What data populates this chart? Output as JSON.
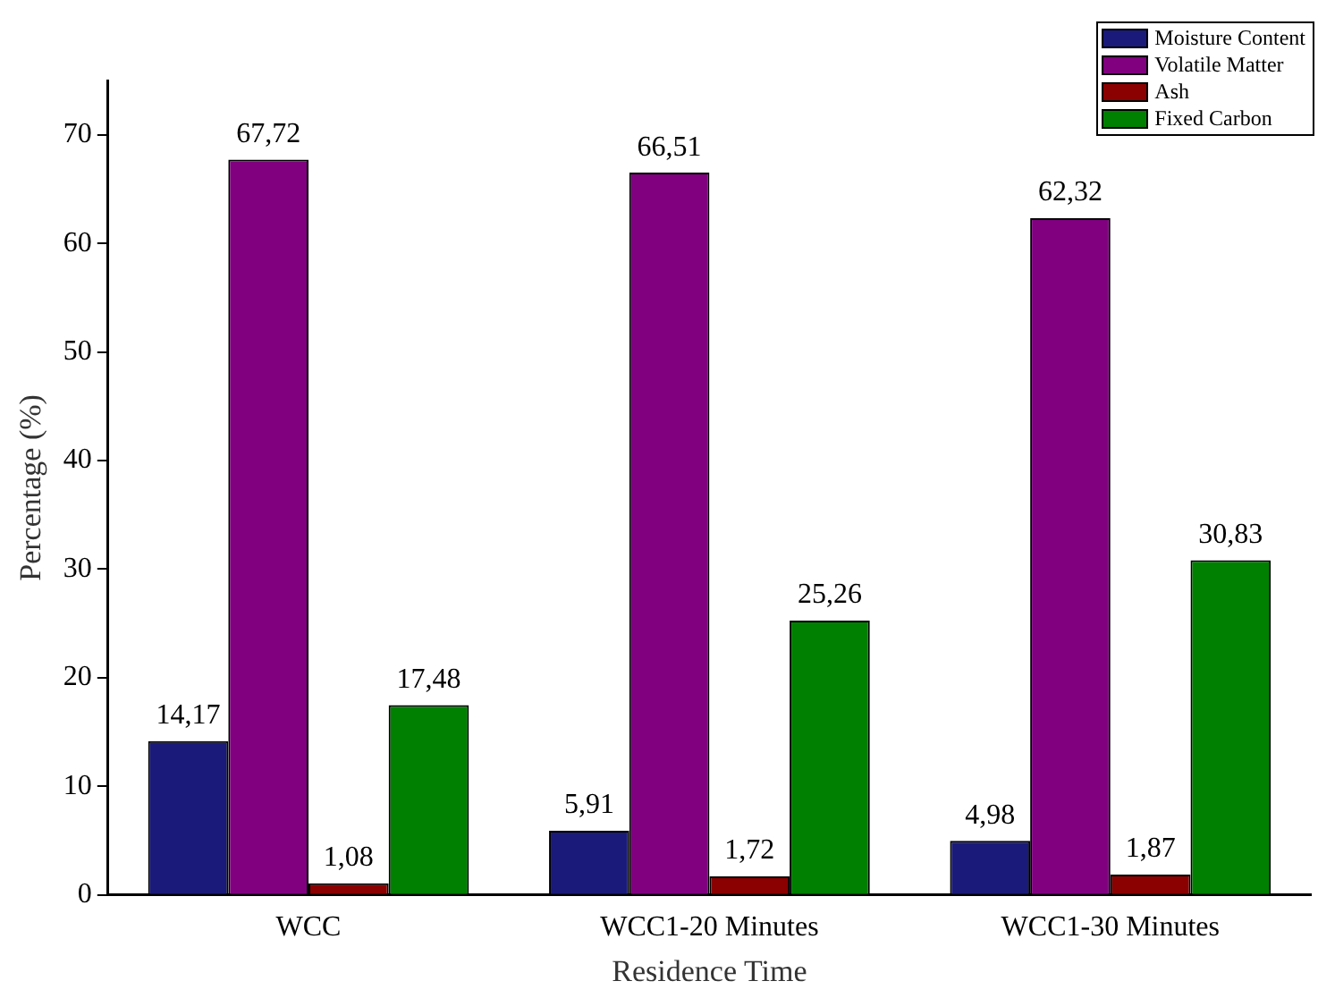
{
  "chart_data": {
    "type": "bar",
    "xlabel": "Residence Time",
    "ylabel": "Percentage (%)",
    "categories": [
      "WCC",
      "WCC1-20 Minutes",
      "WCC1-30 Minutes"
    ],
    "series": [
      {
        "name": "Moisture Content",
        "color": "#1a1a7a",
        "values": [
          14.17,
          5.91,
          4.98
        ],
        "value_labels": [
          "14,17",
          "5,91",
          "4,98"
        ]
      },
      {
        "name": "Volatile Matter",
        "color": "#800080",
        "values": [
          67.72,
          66.51,
          62.32
        ],
        "value_labels": [
          "67,72",
          "66,51",
          "62,32"
        ]
      },
      {
        "name": "Ash",
        "color": "#8b0000",
        "values": [
          1.08,
          1.72,
          1.87
        ],
        "value_labels": [
          "1,08",
          "1,72",
          "1,87"
        ]
      },
      {
        "name": "Fixed Carbon",
        "color": "#008000",
        "values": [
          17.48,
          25.26,
          30.83
        ],
        "value_labels": [
          "17,48",
          "25,26",
          "30,83"
        ]
      }
    ],
    "ylim": [
      0,
      75
    ],
    "yticks": [
      0,
      10,
      20,
      30,
      40,
      50,
      60,
      70
    ],
    "grid": false,
    "legend": "top right"
  }
}
